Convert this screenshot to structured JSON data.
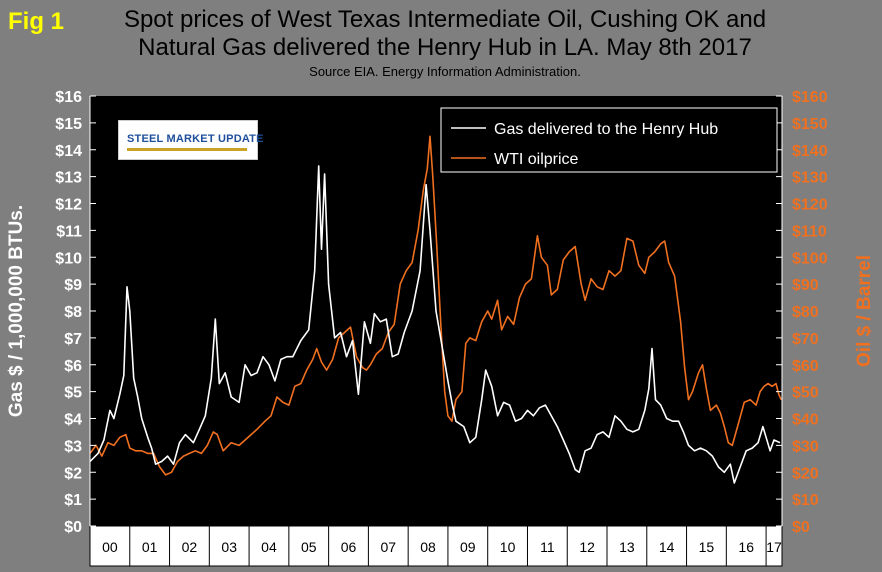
{
  "fig_label": "Fig 1",
  "title_line1": "Spot prices of West Texas Intermediate Oil, Cushing OK and",
  "title_line2": "Natural Gas delivered the Henry Hub in LA. May 8th 2017",
  "subtitle": "Source EIA. Energy Information Administration.",
  "logo_text": "STEEL MARKET UPDATE",
  "colors": {
    "gas": "#ffffff",
    "oil": "#f07020",
    "plot_bg": "#000000",
    "page_bg": "#7f7f7f",
    "fig_label": "#ffff00"
  },
  "chart_data": {
    "type": "line",
    "title": "Spot prices of West Texas Intermediate Oil, Cushing OK and Natural Gas delivered the Henry Hub in LA. May 8th 2017",
    "subtitle": "Source EIA. Energy Information Administration.",
    "xlabel": "",
    "ylabel_left": "Gas $ / 1,000,000 BTUs.",
    "ylabel_right": "Oil $ / Barrel",
    "x_range": [
      2000,
      2017.4
    ],
    "x_ticks": [
      "00",
      "01",
      "02",
      "03",
      "04",
      "05",
      "06",
      "07",
      "08",
      "09",
      "10",
      "11",
      "12",
      "13",
      "14",
      "15",
      "16",
      "17"
    ],
    "ylim_left": [
      0,
      16
    ],
    "ylim_right": [
      0,
      160
    ],
    "y_ticks_left": [
      "$0",
      "$1",
      "$2",
      "$3",
      "$4",
      "$5",
      "$6",
      "$7",
      "$8",
      "$9",
      "$10",
      "$11",
      "$12",
      "$13",
      "$14",
      "$15",
      "$16"
    ],
    "y_ticks_right": [
      "$0",
      "$10",
      "$20",
      "$30",
      "$40",
      "$50",
      "$60",
      "$70",
      "$80",
      "$90",
      "$100",
      "$110",
      "$120",
      "$130",
      "$140",
      "$150",
      "$160"
    ],
    "grid": false,
    "legend_position": "top-right",
    "series": [
      {
        "name": "Gas delivered to the Henry Hub",
        "axis": "left",
        "points": [
          [
            2000.0,
            2.4
          ],
          [
            2000.2,
            2.7
          ],
          [
            2000.35,
            3.2
          ],
          [
            2000.5,
            4.3
          ],
          [
            2000.6,
            4.0
          ],
          [
            2000.75,
            4.9
          ],
          [
            2000.85,
            5.6
          ],
          [
            2000.93,
            8.9
          ],
          [
            2001.0,
            8.0
          ],
          [
            2001.1,
            5.5
          ],
          [
            2001.2,
            4.8
          ],
          [
            2001.3,
            4.0
          ],
          [
            2001.45,
            3.3
          ],
          [
            2001.55,
            2.9
          ],
          [
            2001.65,
            2.3
          ],
          [
            2001.8,
            2.4
          ],
          [
            2001.95,
            2.6
          ],
          [
            2002.1,
            2.3
          ],
          [
            2002.25,
            3.1
          ],
          [
            2002.4,
            3.4
          ],
          [
            2002.6,
            3.1
          ],
          [
            2002.75,
            3.6
          ],
          [
            2002.9,
            4.1
          ],
          [
            2003.05,
            5.5
          ],
          [
            2003.15,
            7.7
          ],
          [
            2003.25,
            5.3
          ],
          [
            2003.4,
            5.7
          ],
          [
            2003.55,
            4.8
          ],
          [
            2003.75,
            4.6
          ],
          [
            2003.9,
            6.0
          ],
          [
            2004.05,
            5.6
          ],
          [
            2004.2,
            5.7
          ],
          [
            2004.35,
            6.3
          ],
          [
            2004.5,
            6.0
          ],
          [
            2004.65,
            5.4
          ],
          [
            2004.8,
            6.2
          ],
          [
            2004.95,
            6.3
          ],
          [
            2005.1,
            6.3
          ],
          [
            2005.3,
            6.9
          ],
          [
            2005.5,
            7.3
          ],
          [
            2005.65,
            9.5
          ],
          [
            2005.75,
            13.4
          ],
          [
            2005.82,
            10.3
          ],
          [
            2005.9,
            13.1
          ],
          [
            2006.0,
            9.0
          ],
          [
            2006.15,
            7.0
          ],
          [
            2006.3,
            7.2
          ],
          [
            2006.45,
            6.3
          ],
          [
            2006.6,
            6.9
          ],
          [
            2006.75,
            4.9
          ],
          [
            2006.9,
            7.6
          ],
          [
            2007.05,
            6.8
          ],
          [
            2007.15,
            7.9
          ],
          [
            2007.3,
            7.6
          ],
          [
            2007.45,
            7.7
          ],
          [
            2007.6,
            6.3
          ],
          [
            2007.75,
            6.4
          ],
          [
            2007.9,
            7.2
          ],
          [
            2008.1,
            8.0
          ],
          [
            2008.3,
            9.5
          ],
          [
            2008.45,
            12.7
          ],
          [
            2008.55,
            11.0
          ],
          [
            2008.7,
            8.0
          ],
          [
            2008.85,
            6.7
          ],
          [
            2009.0,
            5.4
          ],
          [
            2009.1,
            4.6
          ],
          [
            2009.2,
            3.9
          ],
          [
            2009.4,
            3.7
          ],
          [
            2009.55,
            3.1
          ],
          [
            2009.7,
            3.3
          ],
          [
            2009.85,
            4.7
          ],
          [
            2009.95,
            5.8
          ],
          [
            2010.1,
            5.2
          ],
          [
            2010.25,
            4.1
          ],
          [
            2010.4,
            4.6
          ],
          [
            2010.55,
            4.5
          ],
          [
            2010.7,
            3.9
          ],
          [
            2010.85,
            4.0
          ],
          [
            2011.0,
            4.3
          ],
          [
            2011.15,
            4.1
          ],
          [
            2011.3,
            4.4
          ],
          [
            2011.45,
            4.5
          ],
          [
            2011.6,
            4.1
          ],
          [
            2011.75,
            3.7
          ],
          [
            2011.9,
            3.2
          ],
          [
            2012.05,
            2.7
          ],
          [
            2012.2,
            2.1
          ],
          [
            2012.3,
            2.0
          ],
          [
            2012.45,
            2.8
          ],
          [
            2012.6,
            2.9
          ],
          [
            2012.75,
            3.4
          ],
          [
            2012.9,
            3.5
          ],
          [
            2013.05,
            3.3
          ],
          [
            2013.2,
            4.1
          ],
          [
            2013.35,
            3.9
          ],
          [
            2013.5,
            3.6
          ],
          [
            2013.65,
            3.5
          ],
          [
            2013.8,
            3.6
          ],
          [
            2013.95,
            4.3
          ],
          [
            2014.05,
            5.1
          ],
          [
            2014.13,
            6.6
          ],
          [
            2014.22,
            4.7
          ],
          [
            2014.35,
            4.5
          ],
          [
            2014.5,
            4.0
          ],
          [
            2014.65,
            3.9
          ],
          [
            2014.8,
            3.9
          ],
          [
            2014.92,
            3.5
          ],
          [
            2015.05,
            3.0
          ],
          [
            2015.2,
            2.8
          ],
          [
            2015.35,
            2.9
          ],
          [
            2015.5,
            2.8
          ],
          [
            2015.65,
            2.6
          ],
          [
            2015.8,
            2.2
          ],
          [
            2015.95,
            2.0
          ],
          [
            2016.1,
            2.3
          ],
          [
            2016.2,
            1.6
          ],
          [
            2016.35,
            2.2
          ],
          [
            2016.5,
            2.8
          ],
          [
            2016.65,
            2.9
          ],
          [
            2016.8,
            3.1
          ],
          [
            2016.92,
            3.7
          ],
          [
            2017.0,
            3.3
          ],
          [
            2017.1,
            2.8
          ],
          [
            2017.2,
            3.2
          ],
          [
            2017.35,
            3.1
          ]
        ]
      },
      {
        "name": "WTI oilprice",
        "axis": "right",
        "points": [
          [
            2000.0,
            27
          ],
          [
            2000.15,
            30
          ],
          [
            2000.3,
            26
          ],
          [
            2000.45,
            31
          ],
          [
            2000.6,
            30
          ],
          [
            2000.75,
            33
          ],
          [
            2000.9,
            34
          ],
          [
            2001.0,
            29
          ],
          [
            2001.15,
            28
          ],
          [
            2001.3,
            28
          ],
          [
            2001.45,
            27
          ],
          [
            2001.6,
            27
          ],
          [
            2001.75,
            22
          ],
          [
            2001.9,
            19
          ],
          [
            2002.05,
            20
          ],
          [
            2002.2,
            24
          ],
          [
            2002.35,
            26
          ],
          [
            2002.5,
            27
          ],
          [
            2002.65,
            28
          ],
          [
            2002.8,
            27
          ],
          [
            2002.95,
            30
          ],
          [
            2003.1,
            35
          ],
          [
            2003.2,
            34
          ],
          [
            2003.35,
            28
          ],
          [
            2003.55,
            31
          ],
          [
            2003.75,
            30
          ],
          [
            2003.9,
            32
          ],
          [
            2004.05,
            34
          ],
          [
            2004.2,
            36
          ],
          [
            2004.4,
            39
          ],
          [
            2004.55,
            41
          ],
          [
            2004.7,
            48
          ],
          [
            2004.85,
            46
          ],
          [
            2005.0,
            45
          ],
          [
            2005.15,
            52
          ],
          [
            2005.3,
            53
          ],
          [
            2005.45,
            58
          ],
          [
            2005.6,
            62
          ],
          [
            2005.7,
            66
          ],
          [
            2005.82,
            61
          ],
          [
            2005.95,
            58
          ],
          [
            2006.1,
            62
          ],
          [
            2006.25,
            70
          ],
          [
            2006.4,
            72
          ],
          [
            2006.55,
            74
          ],
          [
            2006.7,
            63
          ],
          [
            2006.85,
            59
          ],
          [
            2006.95,
            58
          ],
          [
            2007.05,
            60
          ],
          [
            2007.2,
            64
          ],
          [
            2007.35,
            66
          ],
          [
            2007.5,
            72
          ],
          [
            2007.65,
            75
          ],
          [
            2007.8,
            90
          ],
          [
            2007.95,
            95
          ],
          [
            2008.1,
            98
          ],
          [
            2008.25,
            110
          ],
          [
            2008.38,
            125
          ],
          [
            2008.48,
            133
          ],
          [
            2008.55,
            145
          ],
          [
            2008.62,
            130
          ],
          [
            2008.72,
            104
          ],
          [
            2008.82,
            75
          ],
          [
            2008.92,
            50
          ],
          [
            2009.0,
            41
          ],
          [
            2009.1,
            39
          ],
          [
            2009.2,
            47
          ],
          [
            2009.35,
            50
          ],
          [
            2009.45,
            68
          ],
          [
            2009.55,
            70
          ],
          [
            2009.7,
            69
          ],
          [
            2009.85,
            76
          ],
          [
            2010.0,
            80
          ],
          [
            2010.1,
            77
          ],
          [
            2010.25,
            84
          ],
          [
            2010.35,
            73
          ],
          [
            2010.5,
            78
          ],
          [
            2010.65,
            75
          ],
          [
            2010.8,
            85
          ],
          [
            2010.95,
            90
          ],
          [
            2011.1,
            92
          ],
          [
            2011.25,
            108
          ],
          [
            2011.35,
            100
          ],
          [
            2011.5,
            97
          ],
          [
            2011.6,
            86
          ],
          [
            2011.75,
            88
          ],
          [
            2011.9,
            99
          ],
          [
            2012.05,
            102
          ],
          [
            2012.2,
            104
          ],
          [
            2012.35,
            90
          ],
          [
            2012.45,
            84
          ],
          [
            2012.6,
            92
          ],
          [
            2012.75,
            89
          ],
          [
            2012.9,
            88
          ],
          [
            2013.05,
            95
          ],
          [
            2013.2,
            93
          ],
          [
            2013.35,
            95
          ],
          [
            2013.5,
            107
          ],
          [
            2013.65,
            106
          ],
          [
            2013.8,
            97
          ],
          [
            2013.95,
            94
          ],
          [
            2014.05,
            100
          ],
          [
            2014.2,
            102
          ],
          [
            2014.35,
            105
          ],
          [
            2014.45,
            106
          ],
          [
            2014.55,
            98
          ],
          [
            2014.7,
            93
          ],
          [
            2014.85,
            76
          ],
          [
            2014.95,
            59
          ],
          [
            2015.05,
            47
          ],
          [
            2015.15,
            50
          ],
          [
            2015.3,
            57
          ],
          [
            2015.4,
            60
          ],
          [
            2015.5,
            51
          ],
          [
            2015.6,
            43
          ],
          [
            2015.75,
            45
          ],
          [
            2015.85,
            42
          ],
          [
            2015.95,
            37
          ],
          [
            2016.05,
            31
          ],
          [
            2016.15,
            30
          ],
          [
            2016.3,
            38
          ],
          [
            2016.45,
            46
          ],
          [
            2016.6,
            47
          ],
          [
            2016.75,
            45
          ],
          [
            2016.85,
            50
          ],
          [
            2016.95,
            52
          ],
          [
            2017.05,
            53
          ],
          [
            2017.15,
            52
          ],
          [
            2017.25,
            53
          ],
          [
            2017.32,
            49
          ],
          [
            2017.38,
            47
          ]
        ]
      }
    ]
  }
}
